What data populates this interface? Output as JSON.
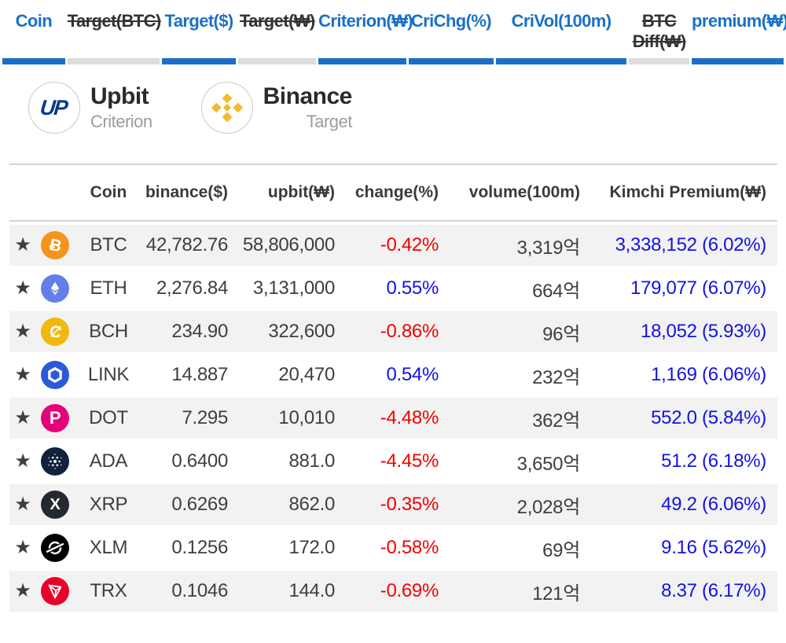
{
  "colors": {
    "accent_blue": "#1a70c8",
    "inactive_bar_gray": "#dcdcdc",
    "inactive_text": "#333333",
    "rule_gray": "#d4d4d4",
    "row_alt_bg": "#f2f2f2",
    "text_dark": "#3e3e3e",
    "negative_red": "#f40000",
    "positive_blue": "#1212e6",
    "star_orange": "#f6921e",
    "upbit_navy": "#0b3a8c",
    "binance_yellow": "#f3ba2f"
  },
  "toggles": {
    "items": [
      {
        "id": "coin",
        "label": "Coin",
        "active": true
      },
      {
        "id": "target-btc",
        "label": "Target(BTC)",
        "active": false
      },
      {
        "id": "target-usd",
        "label": "Target($)",
        "active": true
      },
      {
        "id": "target-krw",
        "label": "Target(₩)",
        "active": false
      },
      {
        "id": "criterion-krw",
        "label": "Criterion(₩)",
        "active": true
      },
      {
        "id": "crichg",
        "label": "CriChg(%)",
        "active": true
      },
      {
        "id": "crivol",
        "label": "CriVol(100m)",
        "active": true
      },
      {
        "id": "btc-diff",
        "label": "BTC Diff(₩)",
        "active": false
      },
      {
        "id": "premium",
        "label": "premium(₩)",
        "active": true
      }
    ]
  },
  "exchanges": {
    "criterion": {
      "name": "Upbit",
      "role": "Criterion",
      "mark": "UP"
    },
    "target": {
      "name": "Binance",
      "role": "Target"
    }
  },
  "table": {
    "headers": {
      "coin": "Coin",
      "binance": "binance($)",
      "upbit": "upbit(₩)",
      "change": "change(%)",
      "volume": "volume(100m)",
      "premium": "Kimchi Premium(₩)"
    },
    "icon_colors": {
      "btc": "#f7931a",
      "eth": "#627eea",
      "bch": "#f0b90b",
      "link": "#2a5ada",
      "dot": "#e6007a",
      "ada": "#13213c",
      "xrp": "#23292f",
      "xlm": "#000000",
      "trx": "#eb0029"
    },
    "rows": [
      {
        "symbol": "BTC",
        "icon": "btc",
        "binance": "42,782.76",
        "upbit": "58,806,000",
        "change": "-0.42%",
        "direction": "down",
        "volume": "3,319억",
        "premium": "3,338,152 (6.02%)"
      },
      {
        "symbol": "ETH",
        "icon": "eth",
        "binance": "2,276.84",
        "upbit": "3,131,000",
        "change": "0.55%",
        "direction": "up",
        "volume": "664억",
        "premium": "179,077 (6.07%)"
      },
      {
        "symbol": "BCH",
        "icon": "bch",
        "binance": "234.90",
        "upbit": "322,600",
        "change": "-0.86%",
        "direction": "down",
        "volume": "96억",
        "premium": "18,052 (5.93%)"
      },
      {
        "symbol": "LINK",
        "icon": "link",
        "binance": "14.887",
        "upbit": "20,470",
        "change": "0.54%",
        "direction": "up",
        "volume": "232억",
        "premium": "1,169 (6.06%)"
      },
      {
        "symbol": "DOT",
        "icon": "dot",
        "binance": "7.295",
        "upbit": "10,010",
        "change": "-4.48%",
        "direction": "down",
        "volume": "362억",
        "premium": "552.0 (5.84%)"
      },
      {
        "symbol": "ADA",
        "icon": "ada",
        "binance": "0.6400",
        "upbit": "881.0",
        "change": "-4.45%",
        "direction": "down",
        "volume": "3,650억",
        "premium": "51.2 (6.18%)"
      },
      {
        "symbol": "XRP",
        "icon": "xrp",
        "binance": "0.6269",
        "upbit": "862.0",
        "change": "-0.35%",
        "direction": "down",
        "volume": "2,028억",
        "premium": "49.2 (6.06%)"
      },
      {
        "symbol": "XLM",
        "icon": "xlm",
        "binance": "0.1256",
        "upbit": "172.0",
        "change": "-0.58%",
        "direction": "down",
        "volume": "69억",
        "premium": "9.16 (5.62%)"
      },
      {
        "symbol": "TRX",
        "icon": "trx",
        "binance": "0.1046",
        "upbit": "144.0",
        "change": "-0.69%",
        "direction": "down",
        "volume": "121억",
        "premium": "8.37 (6.17%)"
      }
    ]
  }
}
